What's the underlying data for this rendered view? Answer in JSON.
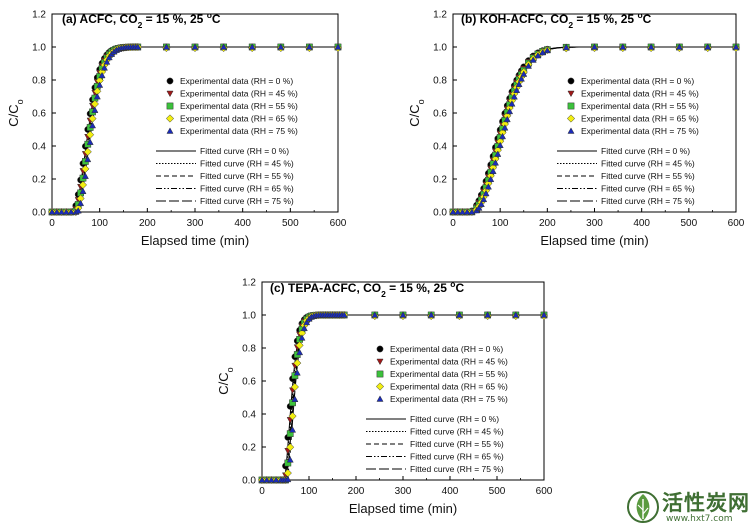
{
  "chart_data": [
    {
      "type": "scatter",
      "panel": "a",
      "title_parts": [
        "(a) ACFC, CO",
        "2",
        " = 15 %, 25 ",
        "o",
        "C"
      ],
      "xlabel": "Elapsed time (min)",
      "ylabel_parts": [
        "C/C",
        "o"
      ],
      "xlim": [
        0,
        600
      ],
      "ylim": [
        0,
        1.2
      ],
      "xticks": [
        "0",
        "100",
        "200",
        "300",
        "400",
        "500",
        "600"
      ],
      "yticks": [
        "0.0",
        "0.2",
        "0.4",
        "0.6",
        "0.8",
        "1.0",
        "1.2"
      ],
      "legend_position": "right",
      "model": {
        "t0": 48,
        "k": 0.026,
        "n": 1.8
      },
      "experimental_series": [
        {
          "name": "Experimental data (RH = 0 %)",
          "marker": "circle",
          "color": "#000000"
        },
        {
          "name": "Experimental data (RH = 45 %)",
          "marker": "triangle-down",
          "color": "#a01818"
        },
        {
          "name": "Experimental data (RH = 55 %)",
          "marker": "square",
          "color": "#3cc23c"
        },
        {
          "name": "Experimental data (RH = 65 %)",
          "marker": "diamond",
          "color": "#f2ee10"
        },
        {
          "name": "Experimental data (RH = 75 %)",
          "marker": "triangle-up",
          "color": "#1a2bb8"
        }
      ],
      "fitted_series": [
        {
          "name": "Fitted curve (RH = 0 %)",
          "dash": "none"
        },
        {
          "name": "Fitted curve (RH = 45 %)",
          "dash": "1.5,1.5"
        },
        {
          "name": "Fitted curve (RH = 55 %)",
          "dash": "5,3"
        },
        {
          "name": "Fitted curve (RH = 65 %)",
          "dash": "6,2,1.5,2,1.5,2"
        },
        {
          "name": "Fitted curve (RH = 75 %)",
          "dash": "10,3"
        }
      ],
      "x": [
        0,
        10,
        20,
        30,
        40,
        50,
        55,
        60,
        65,
        70,
        75,
        80,
        85,
        90,
        95,
        100,
        105,
        110,
        115,
        120,
        125,
        130,
        135,
        140,
        145,
        150,
        155,
        160,
        165,
        170,
        175,
        180,
        240,
        300,
        360,
        420,
        480,
        540,
        600
      ]
    },
    {
      "type": "scatter",
      "panel": "b",
      "title_parts": [
        "(b) KOH-ACFC, CO",
        "2",
        " = 15 %, 25 ",
        "o",
        "C"
      ],
      "xlabel": "Elapsed time (min)",
      "ylabel_parts": [
        "C/C",
        "o"
      ],
      "xlim": [
        0,
        600
      ],
      "ylim": [
        0,
        1.2
      ],
      "xticks": [
        "0",
        "100",
        "200",
        "300",
        "400",
        "500",
        "600"
      ],
      "yticks": [
        "0.0",
        "0.2",
        "0.4",
        "0.6",
        "0.8",
        "1.0",
        "1.2"
      ],
      "legend_position": "right",
      "model": {
        "t0": 38,
        "k": 0.0125,
        "n": 2.0
      },
      "experimental_series": [
        {
          "name": "Experimental data (RH = 0 %)",
          "marker": "circle",
          "color": "#000000"
        },
        {
          "name": "Experimental data (RH = 45 %)",
          "marker": "triangle-down",
          "color": "#a01818"
        },
        {
          "name": "Experimental data (RH = 55 %)",
          "marker": "square",
          "color": "#3cc23c"
        },
        {
          "name": "Experimental data (RH = 65 %)",
          "marker": "diamond",
          "color": "#f2ee10"
        },
        {
          "name": "Experimental data (RH = 75 %)",
          "marker": "triangle-up",
          "color": "#1a2bb8"
        }
      ],
      "fitted_series": [
        {
          "name": "Fitted curve (RH = 0 %)",
          "dash": "none"
        },
        {
          "name": "Fitted curve (RH = 45 %)",
          "dash": "1.5,1.5"
        },
        {
          "name": "Fitted curve (RH = 55 %)",
          "dash": "5,3"
        },
        {
          "name": "Fitted curve (RH = 65 %)",
          "dash": "6,2,1.5,2,1.5,2"
        },
        {
          "name": "Fitted curve (RH = 75 %)",
          "dash": "10,3"
        }
      ],
      "x": [
        0,
        10,
        20,
        30,
        40,
        50,
        55,
        60,
        65,
        70,
        75,
        80,
        85,
        90,
        95,
        100,
        105,
        110,
        115,
        120,
        125,
        130,
        135,
        140,
        145,
        150,
        160,
        170,
        180,
        190,
        200,
        240,
        300,
        360,
        420,
        480,
        540,
        600
      ]
    },
    {
      "type": "scatter",
      "panel": "c",
      "title_parts": [
        "(c) TEPA-ACFC, CO",
        "2",
        " = 15 %, 25 ",
        "o",
        "C"
      ],
      "xlabel": "Elapsed time (min)",
      "ylabel_parts": [
        "C/C",
        "o"
      ],
      "xlim": [
        0,
        600
      ],
      "ylim": [
        0,
        1.2
      ],
      "xticks": [
        "0",
        "100",
        "200",
        "300",
        "400",
        "500",
        "600"
      ],
      "yticks": [
        "0.0",
        "0.2",
        "0.4",
        "0.6",
        "0.8",
        "1.0",
        "1.2"
      ],
      "legend_position": "right",
      "model": {
        "t0": 50,
        "k": 0.05,
        "n": 1.6
      },
      "experimental_series": [
        {
          "name": "Experimental data (RH = 0 %)",
          "marker": "circle",
          "color": "#000000"
        },
        {
          "name": "Experimental data (RH = 45 %)",
          "marker": "triangle-down",
          "color": "#a01818"
        },
        {
          "name": "Experimental data (RH = 55 %)",
          "marker": "square",
          "color": "#3cc23c"
        },
        {
          "name": "Experimental data (RH = 65 %)",
          "marker": "diamond",
          "color": "#f2ee10"
        },
        {
          "name": "Experimental data (RH = 75 %)",
          "marker": "triangle-up",
          "color": "#1a2bb8"
        }
      ],
      "fitted_series": [
        {
          "name": "Fitted curve (RH = 0 %)",
          "dash": "none"
        },
        {
          "name": "Fitted curve (RH = 45 %)",
          "dash": "1.5,1.5"
        },
        {
          "name": "Fitted curve (RH = 55 %)",
          "dash": "5,3"
        },
        {
          "name": "Fitted curve (RH = 65 %)",
          "dash": "6,2,1.5,2,1.5,2"
        },
        {
          "name": "Fitted curve (RH = 75 %)",
          "dash": "10,3"
        }
      ],
      "x": [
        0,
        10,
        20,
        30,
        40,
        45,
        50,
        55,
        60,
        65,
        70,
        75,
        80,
        85,
        90,
        95,
        100,
        105,
        110,
        115,
        120,
        125,
        130,
        135,
        140,
        145,
        150,
        155,
        160,
        165,
        170,
        175,
        240,
        300,
        360,
        420,
        480,
        540,
        600
      ]
    }
  ],
  "watermark": {
    "text": "活性炭网",
    "url": "www.hxt7.com",
    "color": "#3f6f33"
  }
}
